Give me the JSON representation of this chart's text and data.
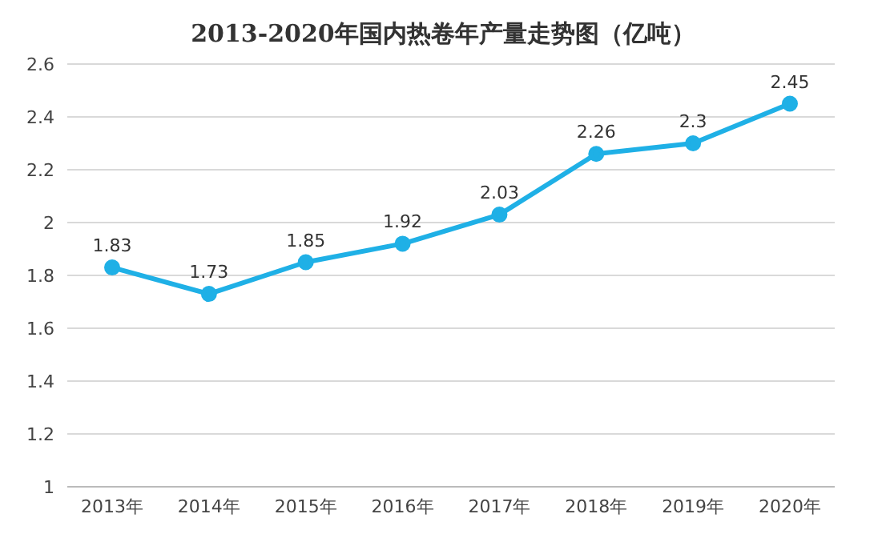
{
  "chart_data": {
    "type": "line",
    "title": "2013-2020年国内热卷年产量走势图（亿吨）",
    "categories": [
      "2013年",
      "2014年",
      "2015年",
      "2016年",
      "2017年",
      "2018年",
      "2019年",
      "2020年"
    ],
    "series": [
      {
        "color": "#1fb0e6",
        "values": [
          1.83,
          1.73,
          1.85,
          1.92,
          2.03,
          2.26,
          2.3,
          2.45
        ]
      }
    ],
    "ylim": [
      1,
      2.6
    ],
    "yticks": [
      1,
      1.2,
      1.4,
      1.6,
      1.8,
      2,
      2.2,
      2.4,
      2.6
    ],
    "grid": "y",
    "marker": "circle",
    "line_style": "solid",
    "data_labels": true
  }
}
